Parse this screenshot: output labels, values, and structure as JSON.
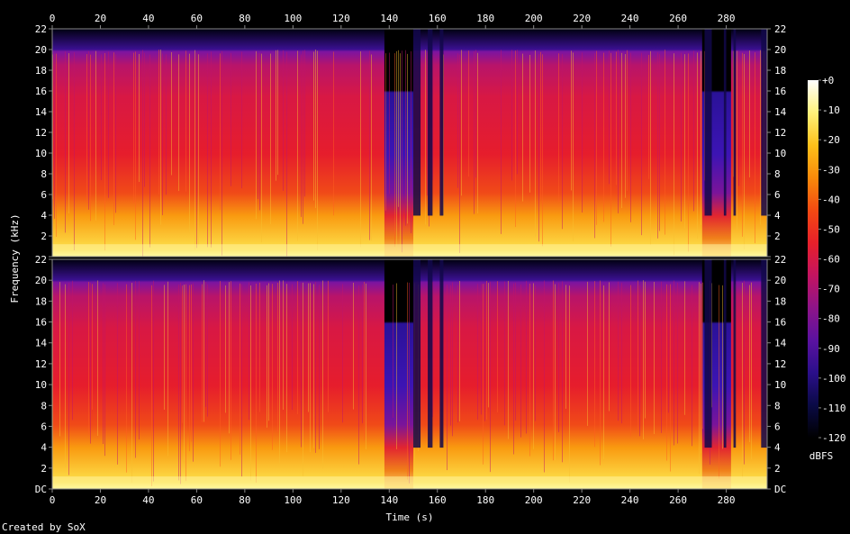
{
  "chart_data": {
    "type": "heatmap",
    "subtype": "spectrogram",
    "xlabel": "Time (s)",
    "ylabel": "Frequency (kHz)",
    "xlim": [
      0,
      297
    ],
    "x_ticks": [
      "0",
      "20",
      "40",
      "60",
      "80",
      "100",
      "120",
      "140",
      "160",
      "180",
      "200",
      "220",
      "240",
      "260",
      "280"
    ],
    "ylim_khz": [
      0,
      22
    ],
    "y_ticks": [
      "DC",
      "2",
      "4",
      "6",
      "8",
      "10",
      "12",
      "14",
      "16",
      "18",
      "20",
      "22"
    ],
    "channels": 2,
    "colorbar": {
      "label": "dBFS",
      "range": [
        -120,
        0
      ],
      "ticks": [
        "+0",
        "-10",
        "-20",
        "-30",
        "-40",
        "-50",
        "-60",
        "-70",
        "-80",
        "-90",
        "-100",
        "-110",
        "-120"
      ],
      "stops": [
        "#000000",
        "#0a0a45",
        "#2b0f8a",
        "#5b12a0",
        "#8e1488",
        "#c41460",
        "#e8202a",
        "#f34a12",
        "#f98a0a",
        "#fdc11a",
        "#fff27a",
        "#ffffff"
      ]
    },
    "features": {
      "content_cutoff_khz": 20,
      "quiet_sections_s": [
        [
          138,
          150
        ],
        [
          270,
          282
        ]
      ],
      "quiet_section_cutoff_khz": 16
    },
    "footer": "Created by SoX"
  }
}
